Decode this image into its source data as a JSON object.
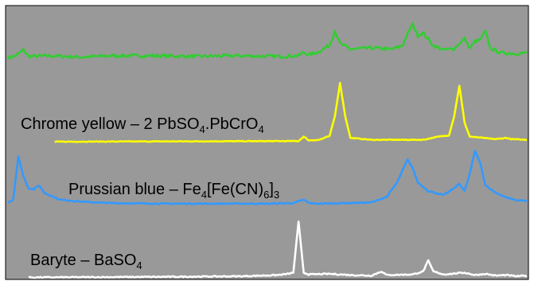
{
  "chart_data": {
    "type": "line",
    "title": "",
    "xlabel": "",
    "ylabel": "",
    "grid": false,
    "legend": "none",
    "background_color": "#999999",
    "frame_color": "#000000",
    "x_range": [
      0,
      100
    ],
    "y_range": [
      0,
      100
    ],
    "series": [
      {
        "key": "top",
        "color": "#33cc33",
        "label": null,
        "baseline": 17,
        "noise": 2.2,
        "x_start": 0,
        "x_end": 100,
        "points": [
          [
            0,
            17
          ],
          [
            1.5,
            20
          ],
          [
            3,
            28
          ],
          [
            4,
            19
          ],
          [
            8,
            20
          ],
          [
            14,
            18
          ],
          [
            20,
            20
          ],
          [
            28,
            20
          ],
          [
            36,
            19
          ],
          [
            44,
            20
          ],
          [
            52,
            19
          ],
          [
            56,
            20
          ],
          [
            57,
            25
          ],
          [
            58,
            21
          ],
          [
            60,
            26
          ],
          [
            62,
            35
          ],
          [
            63,
            55
          ],
          [
            64,
            37
          ],
          [
            66,
            29
          ],
          [
            70,
            31
          ],
          [
            74,
            29
          ],
          [
            76,
            34
          ],
          [
            77,
            50
          ],
          [
            78,
            64
          ],
          [
            79,
            48
          ],
          [
            80,
            52
          ],
          [
            82,
            34
          ],
          [
            84,
            28
          ],
          [
            86,
            30
          ],
          [
            88,
            44
          ],
          [
            89,
            30
          ],
          [
            90,
            40
          ],
          [
            91,
            42
          ],
          [
            92,
            54
          ],
          [
            93,
            30
          ],
          [
            95,
            24
          ],
          [
            98,
            23
          ],
          [
            100,
            24
          ]
        ]
      },
      {
        "key": "chrome",
        "color": "#ffff00",
        "label": {
          "main": "Chrome yellow – 2 PbSO",
          "parts": [
            [
              "4",
              "."
            ],
            [
              "",
              "PbCrO"
            ],
            [
              "4",
              ""
            ]
          ]
        },
        "baseline": 0,
        "noise": 0.5,
        "x_start": 9,
        "x_end": 100,
        "points": [
          [
            9,
            0
          ],
          [
            56,
            1
          ],
          [
            57,
            8
          ],
          [
            58,
            2
          ],
          [
            60,
            3
          ],
          [
            62,
            9
          ],
          [
            63,
            40
          ],
          [
            64,
            92
          ],
          [
            65,
            40
          ],
          [
            66,
            6
          ],
          [
            70,
            3
          ],
          [
            80,
            3
          ],
          [
            83,
            8
          ],
          [
            85,
            10
          ],
          [
            86,
            40
          ],
          [
            87,
            88
          ],
          [
            88,
            30
          ],
          [
            89,
            8
          ],
          [
            94,
            4
          ],
          [
            96,
            6
          ],
          [
            97,
            4
          ],
          [
            100,
            3
          ]
        ]
      },
      {
        "key": "prussian",
        "color": "#3399ff",
        "label": {
          "main": "Prussian blue – Fe",
          "parts": [
            [
              "4",
              "[Fe(CN)"
            ],
            [
              "6",
              "]"
            ],
            [
              "3",
              ""
            ]
          ]
        },
        "baseline": 2,
        "noise": 0.9,
        "x_start": 0,
        "x_end": 100,
        "points": [
          [
            0,
            5
          ],
          [
            1,
            10
          ],
          [
            2,
            85
          ],
          [
            3,
            50
          ],
          [
            4,
            30
          ],
          [
            5,
            28
          ],
          [
            6,
            35
          ],
          [
            7,
            22
          ],
          [
            10,
            10
          ],
          [
            15,
            6
          ],
          [
            20,
            4
          ],
          [
            30,
            3
          ],
          [
            40,
            3
          ],
          [
            50,
            3
          ],
          [
            55,
            4
          ],
          [
            57,
            10
          ],
          [
            58,
            4
          ],
          [
            60,
            3
          ],
          [
            70,
            5
          ],
          [
            73,
            15
          ],
          [
            75,
            40
          ],
          [
            77,
            80
          ],
          [
            78,
            65
          ],
          [
            79,
            40
          ],
          [
            81,
            25
          ],
          [
            84,
            18
          ],
          [
            86,
            30
          ],
          [
            87,
            38
          ],
          [
            88,
            25
          ],
          [
            89,
            55
          ],
          [
            90,
            95
          ],
          [
            91,
            75
          ],
          [
            92,
            35
          ],
          [
            94,
            22
          ],
          [
            96,
            14
          ],
          [
            98,
            9
          ],
          [
            100,
            8
          ]
        ]
      },
      {
        "key": "baryte",
        "color": "#ffffff",
        "label": {
          "main": "Baryte – BaSO",
          "parts": [
            [
              "4",
              ""
            ]
          ]
        },
        "baseline": 2,
        "noise": 0.9,
        "x_start": 4,
        "x_end": 100,
        "points": [
          [
            4,
            2
          ],
          [
            30,
            3
          ],
          [
            45,
            4
          ],
          [
            52,
            6
          ],
          [
            54,
            8
          ],
          [
            55,
            10
          ],
          [
            56,
            95
          ],
          [
            57,
            10
          ],
          [
            58,
            7
          ],
          [
            62,
            8
          ],
          [
            66,
            6
          ],
          [
            70,
            5
          ],
          [
            72,
            12
          ],
          [
            73,
            6
          ],
          [
            78,
            7
          ],
          [
            80,
            12
          ],
          [
            81,
            30
          ],
          [
            82,
            12
          ],
          [
            84,
            7
          ],
          [
            88,
            10
          ],
          [
            90,
            6
          ],
          [
            92,
            8
          ],
          [
            94,
            5
          ],
          [
            96,
            6
          ],
          [
            98,
            4
          ],
          [
            100,
            5
          ]
        ]
      }
    ]
  }
}
